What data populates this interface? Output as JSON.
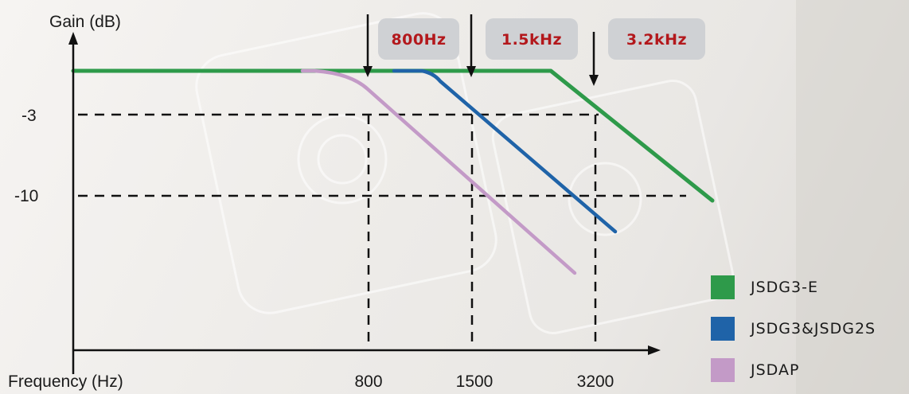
{
  "chart_data": {
    "type": "line",
    "ylabel": "Gain (dB)",
    "xlabel": "Frequency (Hz)",
    "y_ticks": [
      "-3",
      "-10"
    ],
    "x_ticks": [
      "800",
      "1500",
      "3200"
    ],
    "cutoff_markers": [
      {
        "label": "800Hz",
        "frequency": 800
      },
      {
        "label": "1.5kHz",
        "frequency": 1500
      },
      {
        "label": "3.2kHz",
        "frequency": 3200
      }
    ],
    "series": [
      {
        "name": "JSDG3-E",
        "color": "#2e9a4a",
        "cutoff_hz": 3200,
        "levels_db": [
          0,
          0,
          -3,
          -10
        ]
      },
      {
        "name": "JSDG3&JSDG2S",
        "color": "#1f63a8",
        "cutoff_hz": 1500,
        "levels_db": [
          0,
          0,
          -3,
          -10
        ]
      },
      {
        "name": "JSDAP",
        "color": "#c39ac7",
        "cutoff_hz": 800,
        "levels_db": [
          0,
          0,
          -3,
          -10
        ]
      }
    ],
    "grid": "dashed reference lines at -3 dB, -10 dB and cutoff frequencies",
    "legend_position": "bottom-right"
  }
}
